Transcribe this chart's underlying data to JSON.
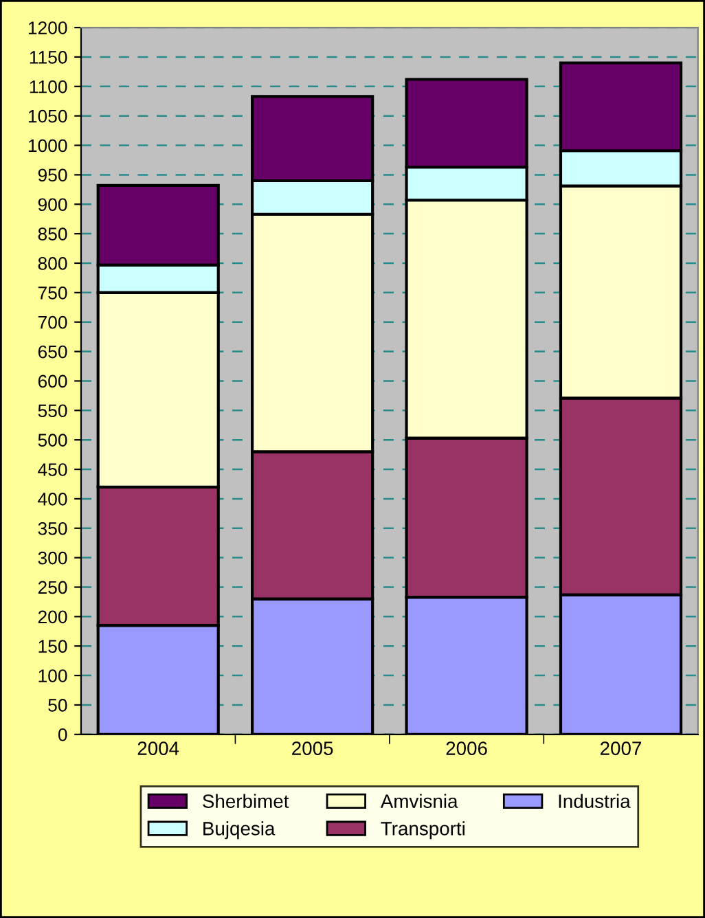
{
  "chart_data": {
    "type": "bar",
    "stacked": true,
    "categories": [
      "2004",
      "2005",
      "2006",
      "2007"
    ],
    "series": [
      {
        "name": "Industria",
        "color": "#9999ff",
        "values": [
          185,
          230,
          233,
          237
        ]
      },
      {
        "name": "Transporti",
        "color": "#993366",
        "values": [
          235,
          250,
          270,
          334
        ]
      },
      {
        "name": "Amvisnia",
        "color": "#ffffcc",
        "values": [
          330,
          403,
          404,
          360
        ]
      },
      {
        "name": "Bujqesia",
        "color": "#ccffff",
        "values": [
          47,
          57,
          56,
          60
        ]
      },
      {
        "name": "Sherbimet",
        "color": "#660066",
        "values": [
          135,
          143,
          149,
          149
        ]
      }
    ],
    "ylim": [
      0,
      1200
    ],
    "yticks": [
      0,
      50,
      100,
      150,
      200,
      250,
      300,
      350,
      400,
      450,
      500,
      550,
      600,
      650,
      700,
      750,
      800,
      850,
      900,
      950,
      1000,
      1050,
      1100,
      1150,
      1200
    ],
    "grid": "y",
    "legend": "bottom"
  }
}
